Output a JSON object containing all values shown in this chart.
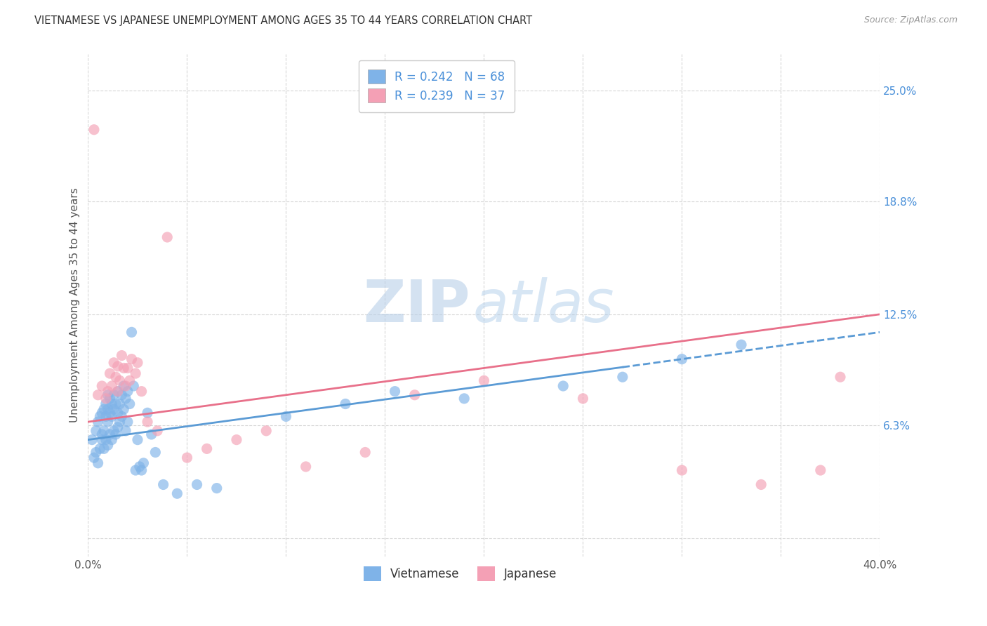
{
  "title": "VIETNAMESE VS JAPANESE UNEMPLOYMENT AMONG AGES 35 TO 44 YEARS CORRELATION CHART",
  "source": "Source: ZipAtlas.com",
  "ylabel": "Unemployment Among Ages 35 to 44 years",
  "xlim": [
    0.0,
    0.4
  ],
  "ylim": [
    -0.01,
    0.27
  ],
  "xtick_positions": [
    0.0,
    0.05,
    0.1,
    0.15,
    0.2,
    0.25,
    0.3,
    0.35,
    0.4
  ],
  "xticklabels": [
    "0.0%",
    "",
    "",
    "",
    "",
    "",
    "",
    "",
    "40.0%"
  ],
  "ytick_positions": [
    0.0,
    0.063,
    0.125,
    0.188,
    0.25
  ],
  "ytick_labels": [
    "",
    "6.3%",
    "12.5%",
    "18.8%",
    "25.0%"
  ],
  "watermark_zip": "ZIP",
  "watermark_atlas": "atlas",
  "legend_R1": "R = 0.242",
  "legend_N1": "N = 68",
  "legend_R2": "R = 0.239",
  "legend_N2": "N = 37",
  "color_vietnamese": "#7fb3e8",
  "color_japanese": "#f4a0b5",
  "color_text_blue": "#4a90d9",
  "color_line_vietnamese": "#5b9bd5",
  "color_line_japanese": "#e8708a",
  "background_color": "#ffffff",
  "grid_color": "#cccccc",
  "vietnamese_x": [
    0.002,
    0.003,
    0.004,
    0.004,
    0.005,
    0.005,
    0.006,
    0.006,
    0.007,
    0.007,
    0.007,
    0.008,
    0.008,
    0.008,
    0.009,
    0.009,
    0.009,
    0.01,
    0.01,
    0.01,
    0.01,
    0.011,
    0.011,
    0.011,
    0.012,
    0.012,
    0.012,
    0.013,
    0.013,
    0.013,
    0.014,
    0.014,
    0.015,
    0.015,
    0.015,
    0.016,
    0.016,
    0.017,
    0.017,
    0.018,
    0.018,
    0.019,
    0.019,
    0.02,
    0.02,
    0.021,
    0.022,
    0.023,
    0.024,
    0.025,
    0.026,
    0.027,
    0.028,
    0.03,
    0.032,
    0.034,
    0.038,
    0.045,
    0.055,
    0.065,
    0.1,
    0.13,
    0.155,
    0.19,
    0.24,
    0.27,
    0.3,
    0.33
  ],
  "vietnamese_y": [
    0.055,
    0.045,
    0.048,
    0.06,
    0.042,
    0.065,
    0.05,
    0.068,
    0.055,
    0.07,
    0.058,
    0.05,
    0.072,
    0.06,
    0.055,
    0.068,
    0.075,
    0.052,
    0.065,
    0.072,
    0.08,
    0.058,
    0.07,
    0.078,
    0.055,
    0.068,
    0.075,
    0.06,
    0.072,
    0.08,
    0.058,
    0.075,
    0.062,
    0.07,
    0.082,
    0.065,
    0.075,
    0.068,
    0.08,
    0.072,
    0.085,
    0.06,
    0.078,
    0.065,
    0.082,
    0.075,
    0.115,
    0.085,
    0.038,
    0.055,
    0.04,
    0.038,
    0.042,
    0.07,
    0.058,
    0.048,
    0.03,
    0.025,
    0.03,
    0.028,
    0.068,
    0.075,
    0.082,
    0.078,
    0.085,
    0.09,
    0.1,
    0.108
  ],
  "japanese_x": [
    0.003,
    0.005,
    0.007,
    0.009,
    0.01,
    0.011,
    0.012,
    0.013,
    0.014,
    0.015,
    0.015,
    0.016,
    0.017,
    0.018,
    0.019,
    0.02,
    0.021,
    0.022,
    0.024,
    0.025,
    0.027,
    0.03,
    0.035,
    0.04,
    0.05,
    0.06,
    0.075,
    0.09,
    0.11,
    0.14,
    0.165,
    0.2,
    0.25,
    0.3,
    0.34,
    0.37,
    0.38
  ],
  "japanese_y": [
    0.228,
    0.08,
    0.085,
    0.078,
    0.082,
    0.092,
    0.085,
    0.098,
    0.09,
    0.082,
    0.096,
    0.088,
    0.102,
    0.095,
    0.085,
    0.095,
    0.088,
    0.1,
    0.092,
    0.098,
    0.082,
    0.065,
    0.06,
    0.168,
    0.045,
    0.05,
    0.055,
    0.06,
    0.04,
    0.048,
    0.08,
    0.088,
    0.078,
    0.038,
    0.03,
    0.038,
    0.09
  ],
  "trend_viet_x0": 0.0,
  "trend_viet_x1": 0.4,
  "trend_viet_y0": 0.055,
  "trend_viet_y1": 0.115,
  "trend_viet_solid_end": 0.27,
  "trend_jap_x0": 0.0,
  "trend_jap_x1": 0.4,
  "trend_jap_y0": 0.065,
  "trend_jap_y1": 0.125
}
